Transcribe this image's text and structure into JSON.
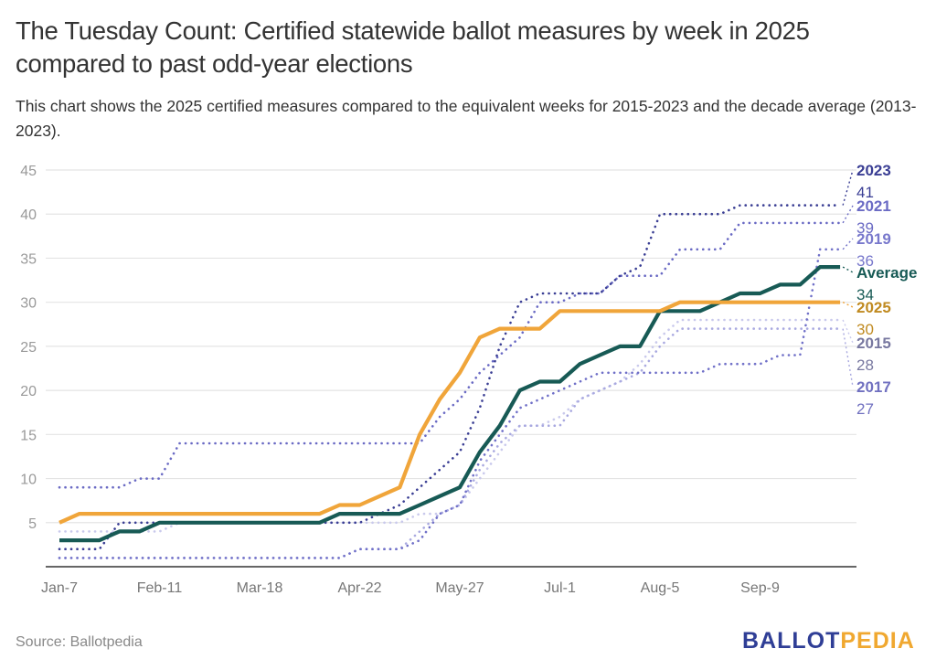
{
  "header": {
    "title": "The Tuesday Count: Certified statewide ballot measures by week in 2025 compared to past odd-year elections",
    "subtitle": "This chart shows the 2025 certified measures compared to the equivalent weeks for 2015-2023 and the decade average (2013-2023)."
  },
  "footer": {
    "source": "Source: Ballotpedia",
    "logo_part1": "BALLOT",
    "logo_part2": "PEDIA"
  },
  "chart_data": {
    "type": "line",
    "title": "The Tuesday Count: Certified statewide ballot measures by week in 2025 compared to past odd-year elections",
    "xlabel": "",
    "ylabel": "",
    "ylim": [
      0,
      45
    ],
    "yticks": [
      5,
      10,
      15,
      20,
      25,
      30,
      35,
      40,
      45
    ],
    "grid": true,
    "legend": "end-of-line labels (right)",
    "xtick_labels": [
      {
        "index": 0,
        "label": "Jan-7"
      },
      {
        "index": 5,
        "label": "Feb-11"
      },
      {
        "index": 10,
        "label": "Mar-18"
      },
      {
        "index": 15,
        "label": "Apr-22"
      },
      {
        "index": 20,
        "label": "May-27"
      },
      {
        "index": 25,
        "label": "Jul-1"
      },
      {
        "index": 30,
        "label": "Aug-5"
      },
      {
        "index": 35,
        "label": "Sep-9"
      }
    ],
    "series": [
      {
        "name": "2015",
        "final": 28,
        "color": "#c9c9ec",
        "style": "dotted",
        "values": [
          4,
          4,
          4,
          4,
          4,
          4,
          5,
          5,
          5,
          5,
          5,
          5,
          5,
          5,
          5,
          5,
          5,
          5,
          6,
          6,
          7,
          10,
          13,
          16,
          16,
          17,
          19,
          20,
          21,
          23,
          26,
          28,
          28,
          28,
          28,
          28,
          28,
          28,
          28,
          28
        ]
      },
      {
        "name": "2017",
        "final": 27,
        "color": "#a9a9e0",
        "style": "dotted",
        "values": [
          1,
          1,
          1,
          1,
          1,
          1,
          1,
          1,
          1,
          1,
          1,
          1,
          1,
          1,
          1,
          2,
          2,
          2,
          4,
          6,
          7,
          11,
          14,
          16,
          16,
          16,
          19,
          20,
          21,
          22,
          25,
          27,
          27,
          27,
          27,
          27,
          27,
          27,
          27,
          27
        ]
      },
      {
        "name": "2019",
        "final": 36,
        "color": "#7070c8",
        "style": "dotted",
        "values": [
          1,
          1,
          1,
          1,
          1,
          1,
          1,
          1,
          1,
          1,
          1,
          1,
          1,
          1,
          1,
          2,
          2,
          2,
          3,
          6,
          7,
          12,
          15,
          18,
          19,
          20,
          21,
          22,
          22,
          22,
          22,
          22,
          22,
          23,
          23,
          23,
          24,
          24,
          36,
          36
        ]
      },
      {
        "name": "2021",
        "final": 39,
        "color": "#6a6ac4",
        "style": "dotted",
        "values": [
          9,
          9,
          9,
          9,
          10,
          10,
          14,
          14,
          14,
          14,
          14,
          14,
          14,
          14,
          14,
          14,
          14,
          14,
          14,
          17,
          19,
          22,
          24,
          26,
          30,
          30,
          31,
          31,
          33,
          33,
          33,
          36,
          36,
          36,
          39,
          39,
          39,
          39,
          39,
          39
        ]
      },
      {
        "name": "2023",
        "final": 41,
        "color": "#3a3e94",
        "style": "dotted",
        "values": [
          2,
          2,
          2,
          5,
          5,
          5,
          5,
          5,
          5,
          5,
          5,
          5,
          5,
          5,
          5,
          5,
          6,
          7,
          9,
          11,
          13,
          18,
          25,
          30,
          31,
          31,
          31,
          31,
          33,
          34,
          40,
          40,
          40,
          40,
          41,
          41,
          41,
          41,
          41,
          41
        ]
      },
      {
        "name": "Average",
        "final": 34,
        "color": "#175a55",
        "style": "solid",
        "values": [
          3,
          3,
          3,
          4,
          4,
          5,
          5,
          5,
          5,
          5,
          5,
          5,
          5,
          5,
          6,
          6,
          6,
          6,
          7,
          8,
          9,
          13,
          16,
          20,
          21,
          21,
          23,
          24,
          25,
          25,
          29,
          29,
          29,
          30,
          31,
          31,
          32,
          32,
          34,
          34
        ]
      },
      {
        "name": "2025",
        "final": 30,
        "color": "#f0a53a",
        "style": "solid",
        "values": [
          5,
          6,
          6,
          6,
          6,
          6,
          6,
          6,
          6,
          6,
          6,
          6,
          6,
          6,
          7,
          7,
          8,
          9,
          15,
          19,
          22,
          26,
          27,
          27,
          27,
          29,
          29,
          29,
          29,
          29,
          29,
          30,
          30,
          30,
          30,
          30,
          30,
          30,
          30,
          30
        ]
      }
    ],
    "end_labels": [
      {
        "name": "2023",
        "value": "41",
        "color": "#3a3e94"
      },
      {
        "name": "2021",
        "value": "39",
        "color": "#6a6ac4"
      },
      {
        "name": "2019",
        "value": "36",
        "color": "#7878cc"
      },
      {
        "name": "Average",
        "value": "34",
        "color": "#175a55"
      },
      {
        "name": "2025",
        "value": "30",
        "color": "#c08a20"
      },
      {
        "name": "2015",
        "value": "28",
        "color": "#7878a0"
      },
      {
        "name": "2017",
        "value": "27",
        "color": "#7070c0"
      }
    ]
  }
}
